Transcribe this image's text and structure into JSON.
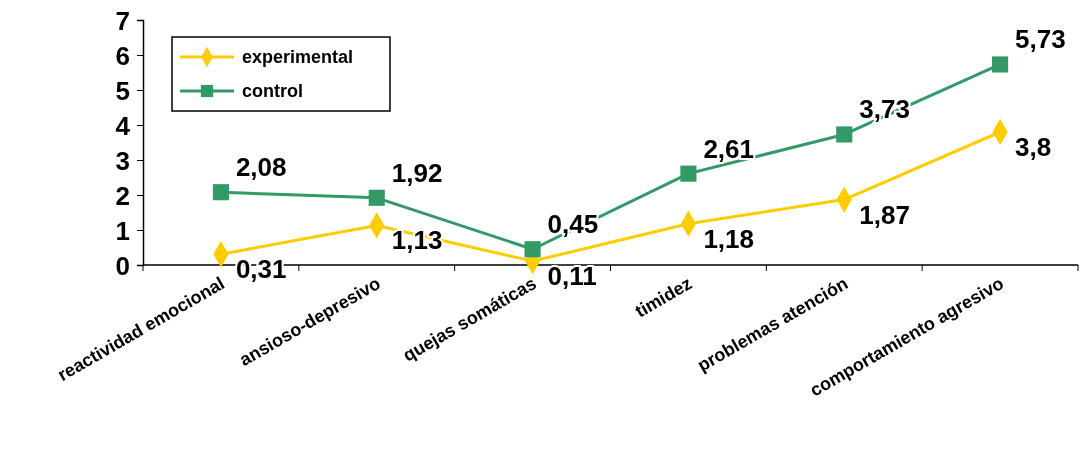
{
  "chart_data": {
    "type": "line",
    "categories": [
      "reactividad emocional",
      "ansioso-depresivo",
      "quejas somáticas",
      "timidez",
      "problemas atención",
      "comportamiento agresivo"
    ],
    "series": [
      {
        "name": "experimental",
        "color": "#ffcc00",
        "marker": "diamond",
        "values": [
          0.31,
          1.13,
          0.11,
          1.18,
          1.87,
          3.8
        ],
        "value_labels": [
          "0,31",
          "1,13",
          "0,11",
          "1,18",
          "1,87",
          "3,8"
        ]
      },
      {
        "name": "control",
        "color": "#339966",
        "marker": "square",
        "values": [
          2.08,
          1.92,
          0.45,
          2.61,
          3.73,
          5.73
        ],
        "value_labels": [
          "2,08",
          "1,92",
          "0,45",
          "2,61",
          "3,73",
          "5,73"
        ]
      }
    ],
    "ylim": [
      0,
      7
    ],
    "yticks": [
      0,
      1,
      2,
      3,
      4,
      5,
      6,
      7
    ],
    "grid": false,
    "legend": "top left"
  }
}
